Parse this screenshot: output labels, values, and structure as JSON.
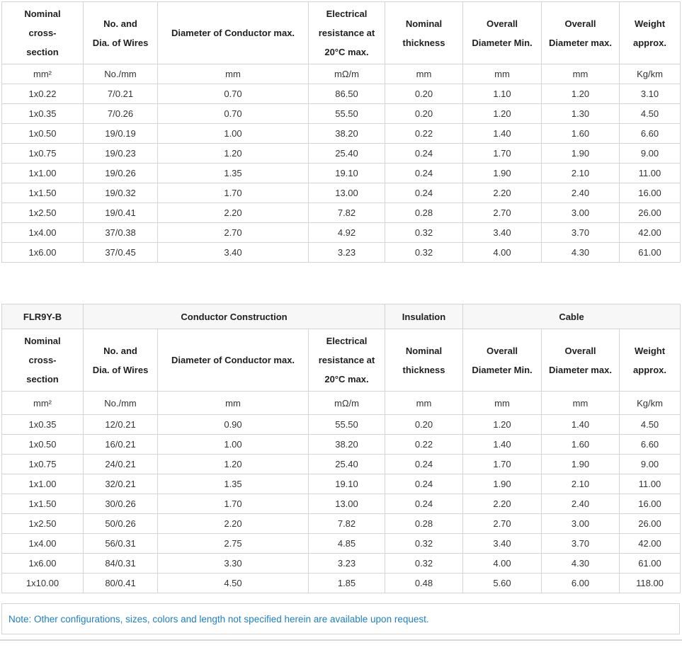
{
  "colors": {
    "border": "#d4d4d4",
    "group_header_bg": "#f7f7f7",
    "note_text": "#1e7fc4",
    "header_text": "#1f1f1f",
    "data_text": "#333333"
  },
  "table1": {
    "header": [
      "Nominal\ncross-\nsection",
      "No. and\nDia. of Wires",
      "Diameter of Conductor max.",
      "Electrical\nresistance at\n20°C max.",
      "Nominal\nthickness",
      "Overall\nDiameter Min.",
      "Overall\nDiameter max.",
      "Weight\napprox."
    ],
    "units": [
      "mm²",
      "No./mm",
      "mm",
      "mΩ/m",
      "mm",
      "mm",
      "mm",
      "Kg/km"
    ],
    "rows": [
      [
        "1x0.22",
        "7/0.21",
        "0.70",
        "86.50",
        "0.20",
        "1.10",
        "1.20",
        "3.10"
      ],
      [
        "1x0.35",
        "7/0.26",
        "0.70",
        "55.50",
        "0.20",
        "1.20",
        "1.30",
        "4.50"
      ],
      [
        "1x0.50",
        "19/0.19",
        "1.00",
        "38.20",
        "0.22",
        "1.40",
        "1.60",
        "6.60"
      ],
      [
        "1x0.75",
        "19/0.23",
        "1.20",
        "25.40",
        "0.24",
        "1.70",
        "1.90",
        "9.00"
      ],
      [
        "1x1.00",
        "19/0.26",
        "1.35",
        "19.10",
        "0.24",
        "1.90",
        "2.10",
        "11.00"
      ],
      [
        "1x1.50",
        "19/0.32",
        "1.70",
        "13.00",
        "0.24",
        "2.20",
        "2.40",
        "16.00"
      ],
      [
        "1x2.50",
        "19/0.41",
        "2.20",
        "7.82",
        "0.28",
        "2.70",
        "3.00",
        "26.00"
      ],
      [
        "1x4.00",
        "37/0.38",
        "2.70",
        "4.92",
        "0.32",
        "3.40",
        "3.70",
        "42.00"
      ],
      [
        "1x6.00",
        "37/0.45",
        "3.40",
        "3.23",
        "0.32",
        "4.00",
        "4.30",
        "61.00"
      ]
    ]
  },
  "table2": {
    "model": "FLR9Y-B",
    "groups": [
      "Conductor Construction",
      "Insulation",
      "Cable"
    ],
    "header": [
      "Nominal\ncross-\nsection",
      "No. and\nDia. of Wires",
      "Diameter of Conductor max.",
      "Electrical\nresistance at\n20°C max.",
      "Nominal\nthickness",
      "Overall\nDiameter Min.",
      "Overall\nDiameter max.",
      "Weight\napprox."
    ],
    "units": [
      "mm²",
      "No./mm",
      "mm",
      "mΩ/m",
      "mm",
      "mm",
      "mm",
      "Kg/km"
    ],
    "rows": [
      [
        "1x0.35",
        "12/0.21",
        "0.90",
        "55.50",
        "0.20",
        "1.20",
        "1.40",
        "4.50"
      ],
      [
        "1x0.50",
        "16/0.21",
        "1.00",
        "38.20",
        "0.22",
        "1.40",
        "1.60",
        "6.60"
      ],
      [
        "1x0.75",
        "24/0.21",
        "1.20",
        "25.40",
        "0.24",
        "1.70",
        "1.90",
        "9.00"
      ],
      [
        "1x1.00",
        "32/0.21",
        "1.35",
        "19.10",
        "0.24",
        "1.90",
        "2.10",
        "11.00"
      ],
      [
        "1x1.50",
        "30/0.26",
        "1.70",
        "13.00",
        "0.24",
        "2.20",
        "2.40",
        "16.00"
      ],
      [
        "1x2.50",
        "50/0.26",
        "2.20",
        "7.82",
        "0.28",
        "2.70",
        "3.00",
        "26.00"
      ],
      [
        "1x4.00",
        "56/0.31",
        "2.75",
        "4.85",
        "0.32",
        "3.40",
        "3.70",
        "42.00"
      ],
      [
        "1x6.00",
        "84/0.31",
        "3.30",
        "3.23",
        "0.32",
        "4.00",
        "4.30",
        "61.00"
      ],
      [
        "1x10.00",
        "80/0.41",
        "4.50",
        "1.85",
        "0.48",
        "5.60",
        "6.00",
        "118.00"
      ]
    ]
  },
  "note": {
    "text": "Note: Other configurations, sizes, colors and length not specified herein are available upon request."
  }
}
